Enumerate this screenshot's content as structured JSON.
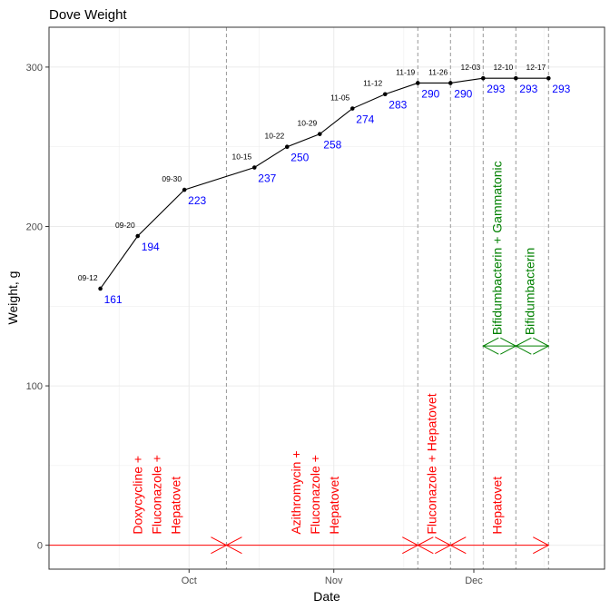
{
  "chart_data": {
    "type": "line",
    "title": "Dove Weight",
    "xlabel": "Date",
    "ylabel": "Weight, g",
    "xlim": [
      "2023-09-01",
      "2023-12-29"
    ],
    "ylim": [
      -15,
      325
    ],
    "y_ticks": [
      0,
      100,
      200,
      300
    ],
    "x_ticks": [
      {
        "date": "2023-10-01",
        "label": "Oct"
      },
      {
        "date": "2023-11-01",
        "label": "Nov"
      },
      {
        "date": "2023-12-01",
        "label": "Dec"
      }
    ],
    "grid": true,
    "points": [
      {
        "date": "2023-09-12",
        "label": "09-12",
        "value": 161
      },
      {
        "date": "2023-09-20",
        "label": "09-20",
        "value": 194
      },
      {
        "date": "2023-09-30",
        "label": "09-30",
        "value": 223
      },
      {
        "date": "2023-10-15",
        "label": "10-15",
        "value": 237
      },
      {
        "date": "2023-10-22",
        "label": "10-22",
        "value": 250
      },
      {
        "date": "2023-10-29",
        "label": "10-29",
        "value": 258
      },
      {
        "date": "2023-11-05",
        "label": "11-05",
        "value": 274
      },
      {
        "date": "2023-11-12",
        "label": "11-12",
        "value": 283
      },
      {
        "date": "2023-11-19",
        "label": "11-19",
        "value": 290
      },
      {
        "date": "2023-11-26",
        "label": "11-26",
        "value": 290
      },
      {
        "date": "2023-12-03",
        "label": "12-03",
        "value": 293
      },
      {
        "date": "2023-12-10",
        "label": "12-10",
        "value": 293
      },
      {
        "date": "2023-12-17",
        "label": "12-17",
        "value": 293
      }
    ],
    "vlines": [
      "2023-10-09",
      "2023-11-19",
      "2023-11-26",
      "2023-12-03",
      "2023-12-10",
      "2023-12-17"
    ],
    "treatments": [
      {
        "start": "2023-09-01",
        "end": "2023-10-09",
        "y": 0,
        "color": "#ff0000",
        "lines": [
          "Doxycycline +",
          "Fluconazole +",
          "Hepatovet"
        ],
        "label_date": "2023-09-24"
      },
      {
        "start": "2023-10-09",
        "end": "2023-11-19",
        "y": 0,
        "color": "#ff0000",
        "lines": [
          "Azithromycin +",
          "Fluconazole +",
          "Hepatovet"
        ],
        "label_date": "2023-10-28"
      },
      {
        "start": "2023-11-19",
        "end": "2023-11-26",
        "y": 0,
        "color": "#ff0000",
        "lines": [
          "Fluconazole + Hepatovet"
        ],
        "label_date": "2023-11-22"
      },
      {
        "start": "2023-11-26",
        "end": "2023-12-17",
        "y": 0,
        "color": "#ff0000",
        "lines": [
          "Hepatovet"
        ],
        "label_date": "2023-12-06"
      },
      {
        "start": "2023-12-03",
        "end": "2023-12-10",
        "y": 125,
        "color": "#008000",
        "lines": [
          "Bifidumbacterin + Gammatonic"
        ],
        "label_date": "2023-12-06"
      },
      {
        "start": "2023-12-10",
        "end": "2023-12-17",
        "y": 125,
        "color": "#008000",
        "lines": [
          "Bifidumbacterin"
        ],
        "label_date": "2023-12-13"
      }
    ]
  }
}
